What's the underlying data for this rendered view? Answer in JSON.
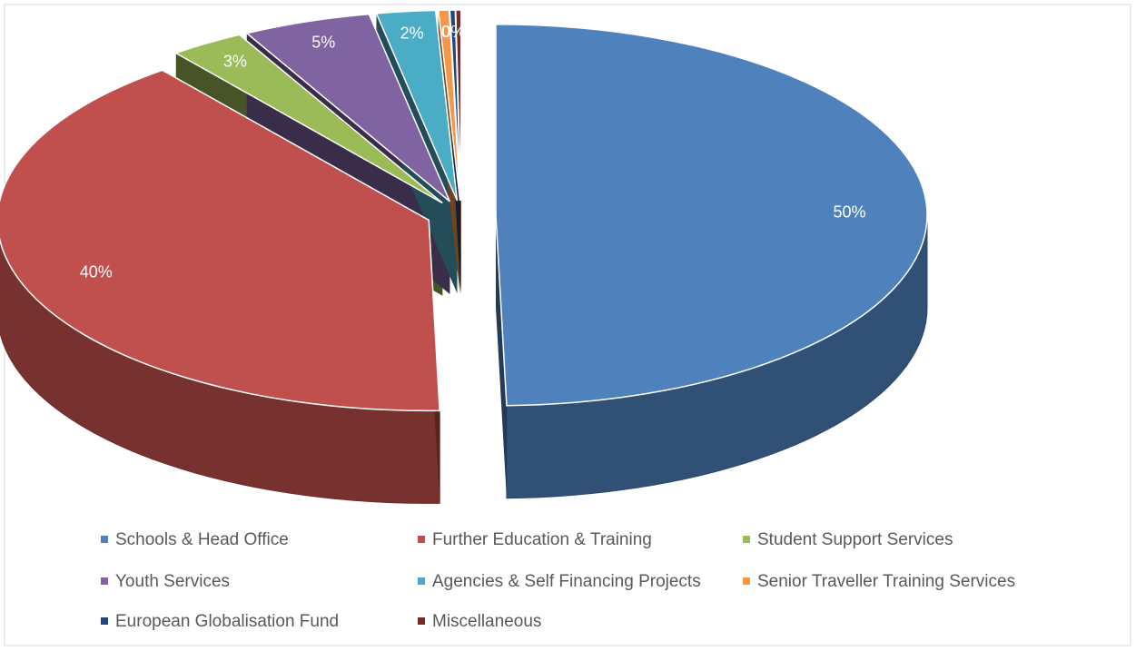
{
  "chart_data": {
    "type": "pie",
    "categories": [
      "Schools & Head Office",
      "Further Education & Training",
      "Student Support Services",
      "Youth Services",
      "Agencies & Self Financing Projects",
      "Senior Traveller Training Services",
      "European Globalisation Fund",
      "Miscellaneous"
    ],
    "values": [
      49.6,
      39.8,
      2.8,
      4.8,
      2.2,
      0.4,
      0.2,
      0.2
    ],
    "value_labels": [
      "50%",
      "40%",
      "3%",
      "5%",
      "2%",
      "0",
      "0%",
      null
    ],
    "colors": [
      "#4f81bd",
      "#c0504d",
      "#9bbb59",
      "#8064a2",
      "#4bacc6",
      "#f79646",
      "#1f497d",
      "#772c2a"
    ]
  }
}
